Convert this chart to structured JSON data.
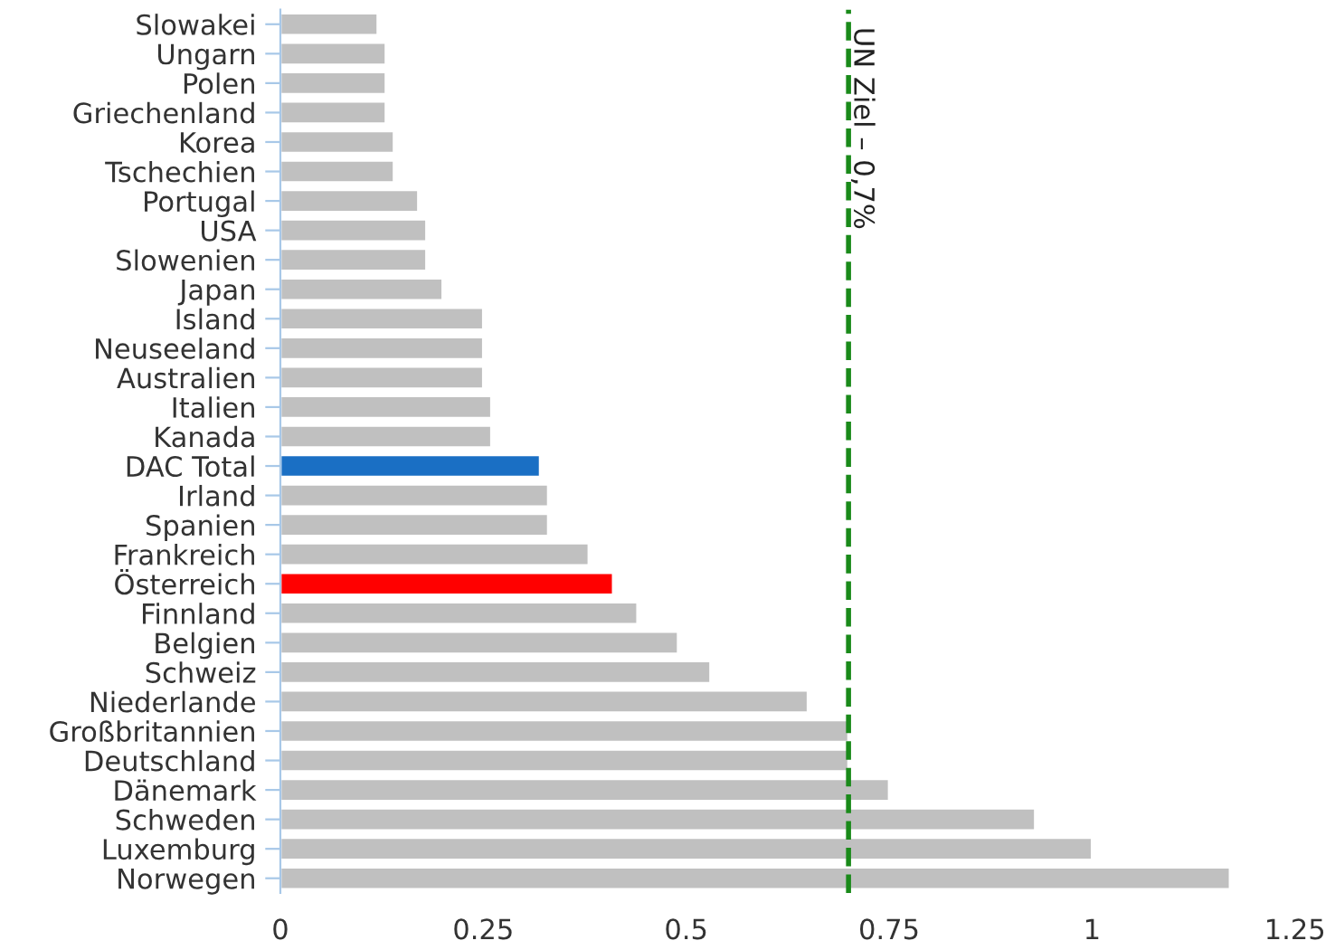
{
  "chart_data": {
    "type": "bar",
    "orientation": "horizontal",
    "categories": [
      "Slowakei",
      "Ungarn",
      "Polen",
      "Griechenland",
      "Korea",
      "Tschechien",
      "Portugal",
      "USA",
      "Slowenien",
      "Japan",
      "Island",
      "Neuseeland",
      "Australien",
      "Italien",
      "Kanada",
      "DAC Total",
      "Irland",
      "Spanien",
      "Frankreich",
      "Österreich",
      "Finnland",
      "Belgien",
      "Schweiz",
      "Niederlande",
      "Großbritannien",
      "Deutschland",
      "Dänemark",
      "Schweden",
      "Luxemburg",
      "Norwegen"
    ],
    "values": [
      0.12,
      0.13,
      0.13,
      0.13,
      0.14,
      0.14,
      0.17,
      0.18,
      0.18,
      0.2,
      0.25,
      0.25,
      0.25,
      0.26,
      0.26,
      0.32,
      0.33,
      0.33,
      0.38,
      0.41,
      0.44,
      0.49,
      0.53,
      0.65,
      0.7,
      0.7,
      0.75,
      0.93,
      1.0,
      1.17
    ],
    "colors": [
      "#c0c0c0",
      "#c0c0c0",
      "#c0c0c0",
      "#c0c0c0",
      "#c0c0c0",
      "#c0c0c0",
      "#c0c0c0",
      "#c0c0c0",
      "#c0c0c0",
      "#c0c0c0",
      "#c0c0c0",
      "#c0c0c0",
      "#c0c0c0",
      "#c0c0c0",
      "#c0c0c0",
      "#1a6fc4",
      "#c0c0c0",
      "#c0c0c0",
      "#c0c0c0",
      "#ff0000",
      "#c0c0c0",
      "#c0c0c0",
      "#c0c0c0",
      "#c0c0c0",
      "#c0c0c0",
      "#c0c0c0",
      "#c0c0c0",
      "#c0c0c0",
      "#c0c0c0",
      "#c0c0c0"
    ],
    "xlim": [
      0,
      1.25
    ],
    "xticks": [
      0,
      0.25,
      0.5,
      0.75,
      1,
      1.25
    ],
    "ref_lines": [
      {
        "axis": "x",
        "value": 0.7,
        "label": "UN Ziel – 0,7%",
        "color": "#1a8a1a",
        "line_style": "dashed"
      }
    ],
    "grid": false,
    "legend": false
  }
}
